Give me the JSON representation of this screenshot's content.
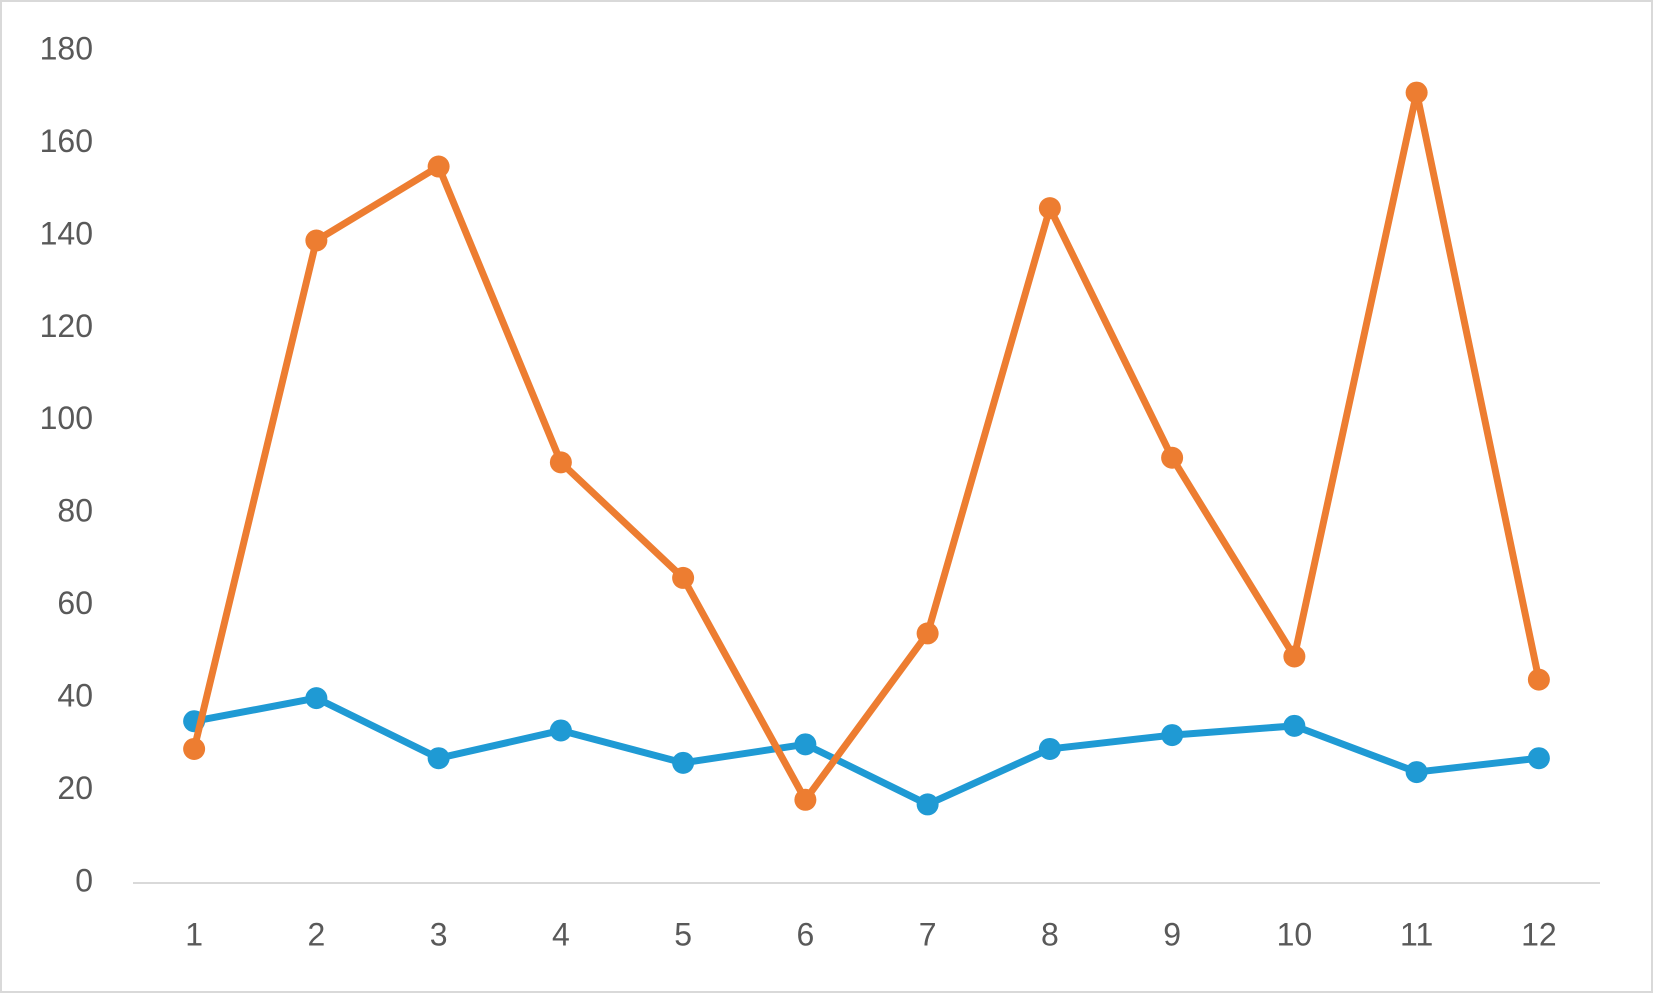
{
  "chart_data": {
    "type": "line",
    "categories": [
      "1",
      "2",
      "3",
      "4",
      "5",
      "6",
      "7",
      "8",
      "9",
      "10",
      "11",
      "12"
    ],
    "series": [
      {
        "color": "#1f9ad4",
        "values": [
          35,
          40,
          27,
          33,
          26,
          30,
          17,
          29,
          32,
          34,
          24,
          27
        ]
      },
      {
        "color": "#ed7d31",
        "values": [
          29,
          139,
          155,
          91,
          66,
          18,
          54,
          146,
          92,
          49,
          171,
          44
        ]
      }
    ],
    "ylim": [
      0,
      180
    ],
    "yticks": [
      0,
      20,
      40,
      60,
      80,
      100,
      120,
      140,
      160,
      180
    ],
    "grid": false
  }
}
